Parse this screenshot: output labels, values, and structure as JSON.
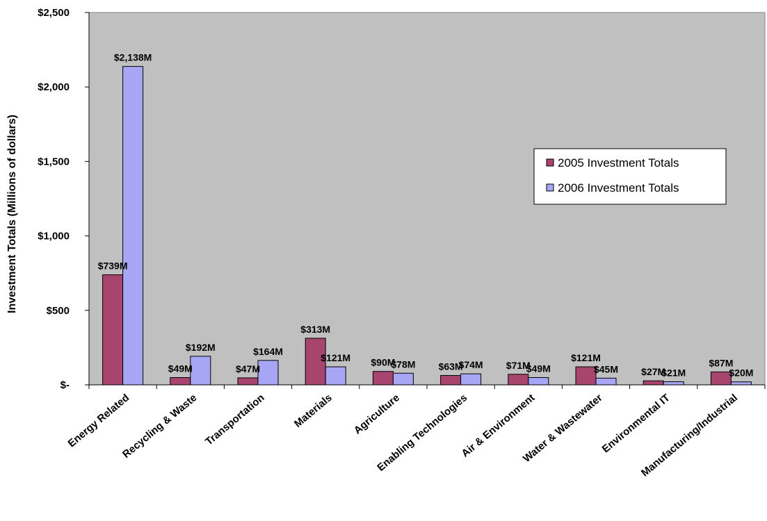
{
  "chart_data": {
    "type": "bar",
    "title": "",
    "xlabel": "",
    "ylabel": "Investment Totals (Millions of dollars)",
    "ylim": [
      0,
      2500
    ],
    "yticks": [
      0,
      500,
      1000,
      1500,
      2000,
      2500
    ],
    "ytick_labels": [
      "$-",
      "$500",
      "$1,000",
      "$1,500",
      "$2,000",
      "$2,500"
    ],
    "grid": false,
    "legend_position": "right",
    "background_color": "#c0c0c0",
    "categories": [
      "Energy Related",
      "Recycling & Waste",
      "Transportation",
      "Materials",
      "Agriculture",
      "Enabling Technologies",
      "Air & Environment",
      "Water & Wastewater",
      "Environmental IT",
      "Manufacturing/Industrial"
    ],
    "series": [
      {
        "name": "2005 Investment Totals",
        "color": "#a8456f",
        "values": [
          739,
          49,
          47,
          313,
          90,
          63,
          71,
          121,
          27,
          87
        ],
        "labels": [
          "$739M",
          "$49M",
          "$47M",
          "$313M",
          "$90M",
          "$63M",
          "$71M",
          "$121M",
          "$27M",
          "$87M"
        ]
      },
      {
        "name": "2006 Investment Totals",
        "color": "#a6a6f4",
        "values": [
          2138,
          192,
          164,
          121,
          78,
          74,
          49,
          45,
          21,
          20
        ],
        "labels": [
          "$2,138M",
          "$192M",
          "$164M",
          "$121M",
          "$78M",
          "$74M",
          "$49M",
          "$45M",
          "$21M",
          "$20M"
        ]
      }
    ]
  }
}
